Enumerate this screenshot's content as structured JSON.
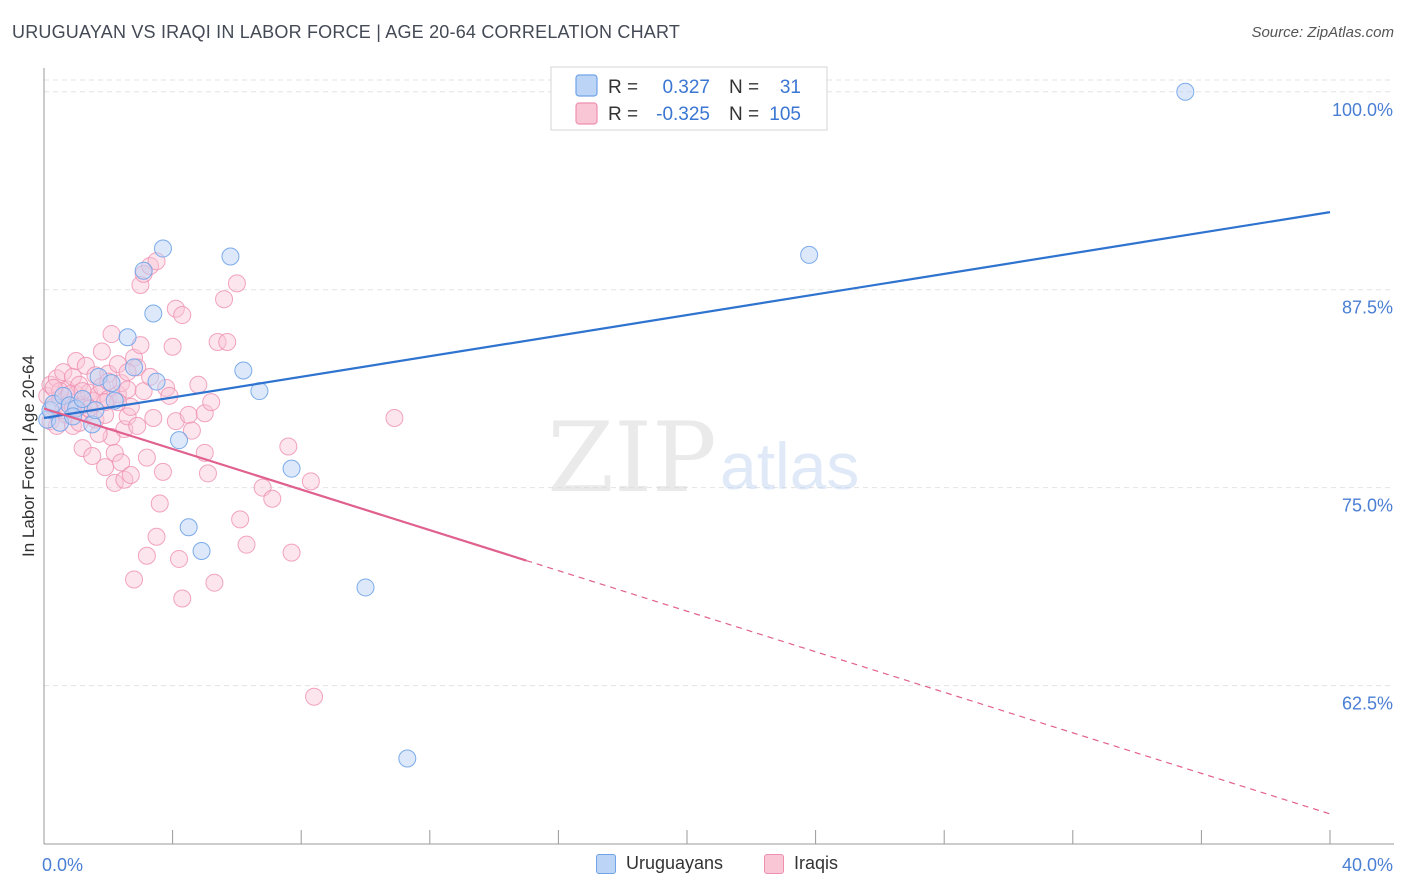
{
  "header": {
    "title": "URUGUAYAN VS IRAQI IN LABOR FORCE | AGE 20-64 CORRELATION CHART",
    "source": "Source: ZipAtlas.com"
  },
  "watermark": {
    "zip": "ZIP",
    "atlas": "atlas"
  },
  "legend": {
    "rows": [
      {
        "r_label": "R =",
        "r_value": "0.327",
        "n_label": "N =",
        "n_value": "31",
        "color": "#6fa3e8",
        "fill": "#bcd4f5"
      },
      {
        "r_label": "R =",
        "r_value": "-0.325",
        "n_label": "N =",
        "n_value": "105",
        "color": "#ef8fb0",
        "fill": "#f9c6d6"
      }
    ]
  },
  "colors": {
    "blue": "#6fa3e8",
    "blue_line": "#2f73d0",
    "pink": "#ef8fb0",
    "pink_line": "#e0608e",
    "tick_text": "#4a7fd4"
  },
  "chart_data": {
    "type": "scatter",
    "title": "URUGUAYAN VS IRAQI IN LABOR FORCE | AGE 20-64 CORRELATION CHART",
    "xlabel": "",
    "ylabel": "In Labor Force | Age 20-64",
    "xlim": [
      0,
      40
    ],
    "ylim": [
      52.5,
      101.5
    ],
    "x_tick_labels": [
      "0.0%",
      "40.0%"
    ],
    "y_ticks": [
      62.5,
      75.0,
      87.5,
      100.0
    ],
    "y_tick_labels": [
      "62.5%",
      "75.0%",
      "87.5%",
      "100.0%"
    ],
    "series": [
      {
        "name": "Uruguayans",
        "r": 0.327,
        "n": 31,
        "trend": {
          "x": [
            0,
            40
          ],
          "y": [
            79.4,
            92.4
          ],
          "solid_until": 40
        },
        "points": [
          [
            0.1,
            79.3
          ],
          [
            0.2,
            79.9
          ],
          [
            0.3,
            80.3
          ],
          [
            0.5,
            79.1
          ],
          [
            0.6,
            80.8
          ],
          [
            0.8,
            80.2
          ],
          [
            1.0,
            80.0
          ],
          [
            1.2,
            80.6
          ],
          [
            1.5,
            79.0
          ],
          [
            1.6,
            79.9
          ],
          [
            1.7,
            82.0
          ],
          [
            2.1,
            81.6
          ],
          [
            2.2,
            80.5
          ],
          [
            2.6,
            84.5
          ],
          [
            2.8,
            82.6
          ],
          [
            3.1,
            88.7
          ],
          [
            3.4,
            86.0
          ],
          [
            3.5,
            81.7
          ],
          [
            3.7,
            90.1
          ],
          [
            4.2,
            78.0
          ],
          [
            4.5,
            72.5
          ],
          [
            4.9,
            71.0
          ],
          [
            5.8,
            89.6
          ],
          [
            6.2,
            82.4
          ],
          [
            6.7,
            81.1
          ],
          [
            7.7,
            76.2
          ],
          [
            10.0,
            68.7
          ],
          [
            11.3,
            57.9
          ],
          [
            23.8,
            89.7
          ],
          [
            35.5,
            100.0
          ],
          [
            0.9,
            79.5
          ]
        ]
      },
      {
        "name": "Iraqis",
        "r": -0.325,
        "n": 105,
        "trend": {
          "x": [
            0,
            40
          ],
          "y": [
            80.0,
            54.4
          ],
          "solid_until": 15
        },
        "points": [
          [
            0.1,
            80.8
          ],
          [
            0.2,
            79.2
          ],
          [
            0.2,
            81.5
          ],
          [
            0.3,
            80.1
          ],
          [
            0.4,
            78.9
          ],
          [
            0.4,
            81.9
          ],
          [
            0.5,
            80.6
          ],
          [
            0.6,
            82.3
          ],
          [
            0.7,
            79.6
          ],
          [
            0.7,
            81.2
          ],
          [
            0.8,
            80.4
          ],
          [
            0.9,
            82.0
          ],
          [
            0.9,
            78.9
          ],
          [
            1.0,
            83.0
          ],
          [
            1.0,
            80.9
          ],
          [
            1.1,
            81.5
          ],
          [
            1.2,
            80.2
          ],
          [
            1.2,
            77.5
          ],
          [
            1.3,
            82.7
          ],
          [
            1.3,
            79.7
          ],
          [
            1.4,
            81.0
          ],
          [
            1.5,
            80.5
          ],
          [
            1.5,
            77.0
          ],
          [
            1.6,
            82.1
          ],
          [
            1.6,
            79.3
          ],
          [
            1.7,
            80.9
          ],
          [
            1.8,
            83.6
          ],
          [
            1.8,
            81.4
          ],
          [
            1.9,
            76.3
          ],
          [
            1.9,
            79.6
          ],
          [
            2.0,
            80.6
          ],
          [
            2.0,
            82.2
          ],
          [
            2.1,
            78.2
          ],
          [
            2.1,
            84.7
          ],
          [
            2.2,
            77.2
          ],
          [
            2.2,
            75.3
          ],
          [
            2.3,
            80.9
          ],
          [
            2.3,
            82.8
          ],
          [
            2.4,
            81.6
          ],
          [
            2.4,
            76.6
          ],
          [
            2.5,
            78.7
          ],
          [
            2.5,
            75.5
          ],
          [
            2.6,
            79.5
          ],
          [
            2.6,
            81.2
          ],
          [
            2.7,
            80.1
          ],
          [
            2.7,
            75.8
          ],
          [
            2.8,
            69.2
          ],
          [
            2.8,
            83.2
          ],
          [
            2.9,
            82.6
          ],
          [
            2.9,
            78.9
          ],
          [
            3.0,
            84.0
          ],
          [
            3.0,
            87.8
          ],
          [
            3.1,
            88.5
          ],
          [
            3.1,
            81.1
          ],
          [
            3.2,
            76.9
          ],
          [
            3.2,
            70.7
          ],
          [
            3.3,
            89.0
          ],
          [
            3.3,
            82.0
          ],
          [
            3.4,
            79.4
          ],
          [
            3.5,
            71.9
          ],
          [
            3.5,
            89.3
          ],
          [
            3.6,
            74.0
          ],
          [
            3.7,
            76.0
          ],
          [
            3.8,
            81.3
          ],
          [
            3.9,
            80.8
          ],
          [
            4.0,
            83.9
          ],
          [
            4.1,
            86.3
          ],
          [
            4.1,
            79.2
          ],
          [
            4.2,
            70.5
          ],
          [
            4.3,
            68.0
          ],
          [
            4.3,
            85.9
          ],
          [
            4.5,
            79.6
          ],
          [
            4.6,
            78.6
          ],
          [
            4.8,
            81.5
          ],
          [
            5.0,
            79.7
          ],
          [
            5.0,
            77.2
          ],
          [
            5.1,
            75.9
          ],
          [
            5.2,
            80.4
          ],
          [
            5.3,
            69.0
          ],
          [
            5.4,
            84.2
          ],
          [
            5.6,
            86.9
          ],
          [
            5.7,
            84.2
          ],
          [
            6.0,
            87.9
          ],
          [
            6.1,
            73.0
          ],
          [
            6.3,
            71.4
          ],
          [
            6.8,
            75.0
          ],
          [
            7.1,
            74.3
          ],
          [
            7.6,
            77.6
          ],
          [
            7.7,
            70.9
          ],
          [
            8.3,
            75.4
          ],
          [
            8.4,
            61.8
          ],
          [
            10.9,
            79.4
          ],
          [
            0.5,
            81.1
          ],
          [
            0.6,
            79.9
          ],
          [
            0.8,
            80.9
          ],
          [
            1.1,
            79.1
          ],
          [
            1.4,
            80.0
          ],
          [
            1.7,
            78.4
          ],
          [
            2.0,
            81.7
          ],
          [
            2.3,
            80.4
          ],
          [
            2.6,
            82.3
          ],
          [
            0.3,
            81.3
          ],
          [
            0.9,
            80.1
          ],
          [
            1.2,
            81.1
          ],
          [
            1.9,
            80.4
          ]
        ]
      }
    ]
  },
  "bottom_legend": {
    "items": [
      "Uruguayans",
      "Iraqis"
    ]
  }
}
